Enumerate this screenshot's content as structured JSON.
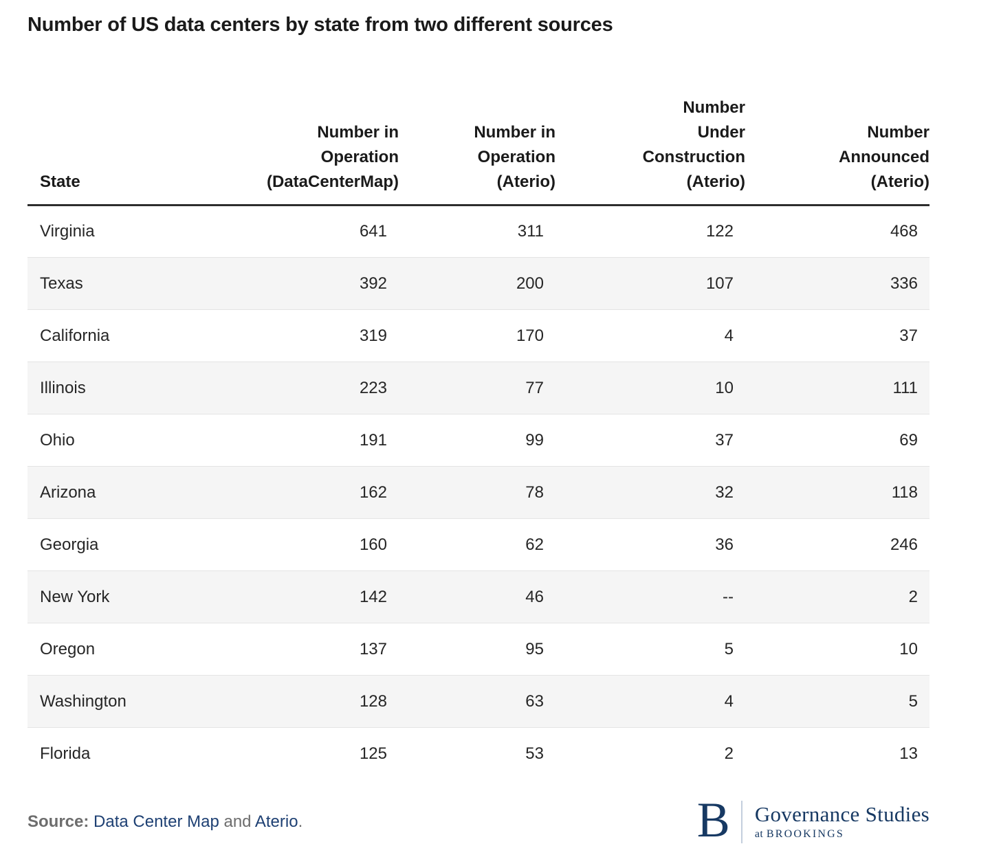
{
  "title": "Number of US data centers by state from two different sources",
  "chart_data": {
    "type": "table",
    "columns": [
      "State",
      "Number in Operation (DataCenterMap)",
      "Number in Operation (Aterio)",
      "Number Under Construction (Aterio)",
      "Number Announced (Aterio)"
    ],
    "rows": [
      [
        "Virginia",
        "641",
        "311",
        "122",
        "468"
      ],
      [
        "Texas",
        "392",
        "200",
        "107",
        "336"
      ],
      [
        "California",
        "319",
        "170",
        "4",
        "37"
      ],
      [
        "Illinois",
        "223",
        "77",
        "10",
        "111"
      ],
      [
        "Ohio",
        "191",
        "99",
        "37",
        "69"
      ],
      [
        "Arizona",
        "162",
        "78",
        "32",
        "118"
      ],
      [
        "Georgia",
        "160",
        "62",
        "36",
        "246"
      ],
      [
        "New York",
        "142",
        "46",
        "--",
        "2"
      ],
      [
        "Oregon",
        "137",
        "95",
        "5",
        "10"
      ],
      [
        "Washington",
        "128",
        "63",
        "4",
        "5"
      ],
      [
        "Florida",
        "125",
        "53",
        "2",
        "13"
      ]
    ]
  },
  "table": {
    "headers": {
      "state": "State",
      "op_datacentermap": "Number in\nOperation\n(DataCenterMap)",
      "op_aterio": "Number in\nOperation\n(Aterio)",
      "construction_aterio": "Number\nUnder\nConstruction\n(Aterio)",
      "announced_aterio": "Number\nAnnounced\n(Aterio)"
    }
  },
  "footer": {
    "source_label": "Source:",
    "source_link_1": "Data Center Map",
    "source_connector": " and ",
    "source_link_2": "Aterio",
    "source_period": ".",
    "logo": {
      "letter": "B",
      "org": "Governance Studies",
      "sub_prefix": "at ",
      "sub_org": "BROOKINGS"
    }
  },
  "colors": {
    "text": "#1f1f1f",
    "stripe": "#f5f5f5",
    "divider": "#e4e4e4",
    "header_rule": "#2d2d2d",
    "source_gray": "#6d6d6d",
    "link_blue": "#1e4073",
    "brand_navy": "#173963"
  }
}
